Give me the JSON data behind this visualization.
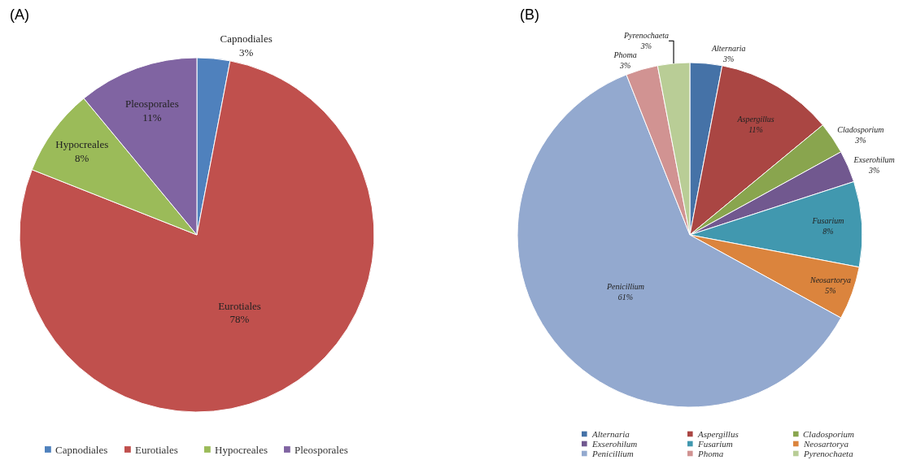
{
  "chart_data": [
    {
      "type": "pie",
      "title": "(A)",
      "categories": [
        "Capnodiales",
        "Eurotiales",
        "Hypocreales",
        "Pleosporales"
      ],
      "values": [
        3,
        78,
        8,
        11
      ],
      "value_labels": [
        "3%",
        "78%",
        "8%",
        "11%"
      ],
      "colors": [
        "#4f81bd",
        "#c0504d",
        "#9bbb59",
        "#8064a2"
      ],
      "legend": "bottom"
    },
    {
      "type": "pie",
      "title": "(B)",
      "categories": [
        "Alternaria",
        "Aspergillus",
        "Cladosporium",
        "Exserohilum",
        "Fusarium",
        "Neosartorya",
        "Penicillium",
        "Phoma",
        "Pyrenochaeta"
      ],
      "values": [
        3,
        11,
        3,
        3,
        8,
        5,
        61,
        3,
        3
      ],
      "value_labels": [
        "3%",
        "11%",
        "3%",
        "3%",
        "8%",
        "5%",
        "61%",
        "3%",
        "3%"
      ],
      "colors": [
        "#4572a7",
        "#aa4643",
        "#89a54e",
        "#71588f",
        "#4198af",
        "#db843d",
        "#93a9cf",
        "#d19392",
        "#b9cd96"
      ],
      "legend": "bottom"
    }
  ]
}
